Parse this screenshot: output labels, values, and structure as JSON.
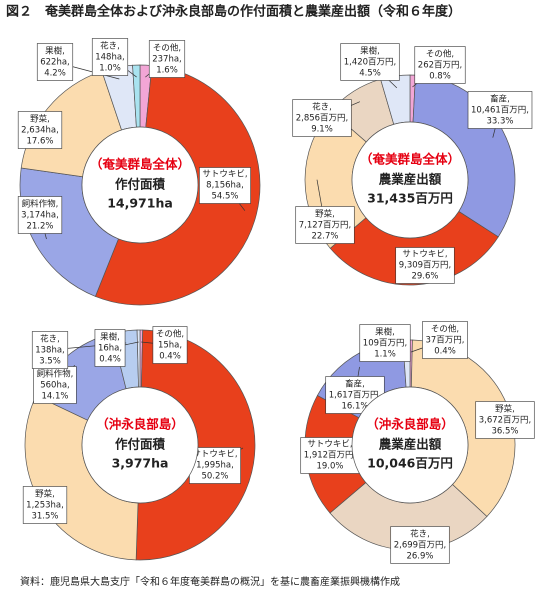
{
  "title": "図２　奄美群島全体および沖永良部島の作付面積と農業産出額（令和６年度）",
  "source": "資料：鹿児島県大島支庁「令和６年度奄美群島の概況」を基に農畜産業振興機構作成",
  "chart_data": [
    {
      "type": "pie",
      "center_title": "（奄美群島全体）",
      "center_subtitle": "作付面積",
      "total": 14971,
      "total_label": "14,971ha",
      "categories": [
        "その他,",
        "サトウキビ,",
        "飼料作物,",
        "野菜,",
        "果樹,",
        "花き,"
      ],
      "values": [
        237,
        8156,
        3174,
        2634,
        622,
        148
      ],
      "value_labels": [
        "237ha,",
        "8,156ha,",
        "3,174ha,",
        "2,634ha,",
        "622ha,",
        "148ha,"
      ],
      "percents": [
        1.6,
        54.5,
        21.2,
        17.6,
        4.2,
        1.0
      ],
      "percent_labels": [
        "1.6%",
        "54.5%",
        "21.2%",
        "17.6%",
        "4.2%",
        "1.0%"
      ],
      "colors": [
        "#f2a6d6",
        "#e8401c",
        "#9aa6e6",
        "#fbdcaf",
        "#dfe7f7",
        "#a9e3f0"
      ]
    },
    {
      "type": "pie",
      "center_title": "（奄美群島全体）",
      "center_subtitle": "農業産出額",
      "total": 31435,
      "total_label": "31,435百万円",
      "categories": [
        "その他,",
        "畜産,",
        "サトウキビ,",
        "野菜,",
        "花き,",
        "果樹,"
      ],
      "values": [
        262,
        10461,
        9309,
        7127,
        2856,
        1420
      ],
      "value_labels": [
        "262百万円,",
        "10,461百万円,",
        "9,309百万円,",
        "7,127百万円,",
        "2,856百万円,",
        "1,420百万円,"
      ],
      "percents": [
        0.8,
        33.3,
        29.6,
        22.7,
        9.1,
        4.5
      ],
      "percent_labels": [
        "0.8%",
        "33.3%",
        "29.6%",
        "22.7%",
        "9.1%",
        "4.5%"
      ],
      "colors": [
        "#f2a6d6",
        "#8f99e2",
        "#e8401c",
        "#fbdcaf",
        "#ead6c2",
        "#dfe7f7"
      ]
    },
    {
      "type": "pie",
      "center_title": "（沖永良部島）",
      "center_subtitle": "作付面積",
      "total": 3977,
      "total_label": "3,977ha",
      "categories": [
        "その他,",
        "サトウキビ,",
        "野菜,",
        "飼料作物,",
        "花き,",
        "果樹,"
      ],
      "values": [
        15,
        1995,
        1253,
        560,
        138,
        16
      ],
      "value_labels": [
        "15ha,",
        "1,995ha,",
        "1,253ha,",
        "560ha,",
        "138ha,",
        "16ha,"
      ],
      "percents": [
        0.4,
        50.2,
        31.5,
        14.1,
        3.5,
        0.4
      ],
      "percent_labels": [
        "0.4%",
        "50.2%",
        "31.5%",
        "14.1%",
        "3.5%",
        "0.4%"
      ],
      "colors": [
        "#f2a6d6",
        "#e8401c",
        "#fbdcaf",
        "#9aa6e6",
        "#b7cdf0",
        "#dfe7f7"
      ]
    },
    {
      "type": "pie",
      "center_title": "（沖永良部島）",
      "center_subtitle": "農業産出額",
      "total": 10046,
      "total_label": "10,046百万円",
      "categories": [
        "その他,",
        "野菜,",
        "花き,",
        "サトウキビ,",
        "畜産,",
        "果樹,"
      ],
      "values": [
        37,
        3672,
        2699,
        1912,
        1617,
        109
      ],
      "value_labels": [
        "37百万円,",
        "3,672百万円,",
        "2,699百万円,",
        "1,912百万円,",
        "1,617百万円,",
        "109百万円,"
      ],
      "percents": [
        0.4,
        36.5,
        26.9,
        19.0,
        16.1,
        1.1
      ],
      "percent_labels": [
        "0.4%",
        "36.5%",
        "26.9%",
        "19.0%",
        "16.1%",
        "1.1%"
      ],
      "colors": [
        "#f2a6d6",
        "#fbdcaf",
        "#ead6c2",
        "#e8401c",
        "#8f99e2",
        "#dfe7f7"
      ]
    }
  ]
}
